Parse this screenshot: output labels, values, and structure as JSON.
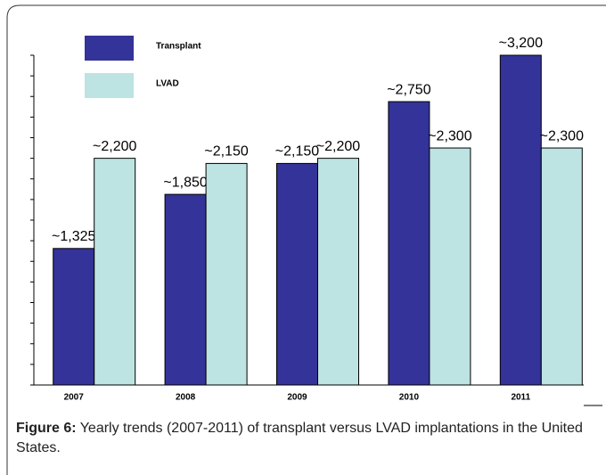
{
  "chart_data": {
    "type": "bar",
    "categories": [
      "2007",
      "2008",
      "2009",
      "2010",
      "2011"
    ],
    "series": [
      {
        "name": "Transplant",
        "color": "#333399",
        "values": [
          1325,
          1850,
          2150,
          2750,
          3200
        ],
        "value_labels": [
          "~1,325",
          "~1,850",
          "~2,150",
          "~2,750",
          "~3,200"
        ]
      },
      {
        "name": "LVAD",
        "color": "#bde3e3",
        "values": [
          2200,
          2150,
          2200,
          2300,
          2300
        ],
        "value_labels": [
          "~2,200",
          "~2,150",
          "~2,200",
          "~2,300",
          "~2,300"
        ]
      }
    ],
    "ylim": [
      0,
      3200
    ],
    "yticks": [
      0,
      200,
      400,
      600,
      800,
      1000,
      1200,
      1400,
      1600,
      1800,
      2000,
      2200,
      2400,
      2600,
      2800,
      3000,
      3200
    ],
    "grid": false
  },
  "caption": {
    "label": "Figure 6:",
    "text": "Yearly trends (2007-2011) of transplant versus LVAD implantations in the United States."
  }
}
